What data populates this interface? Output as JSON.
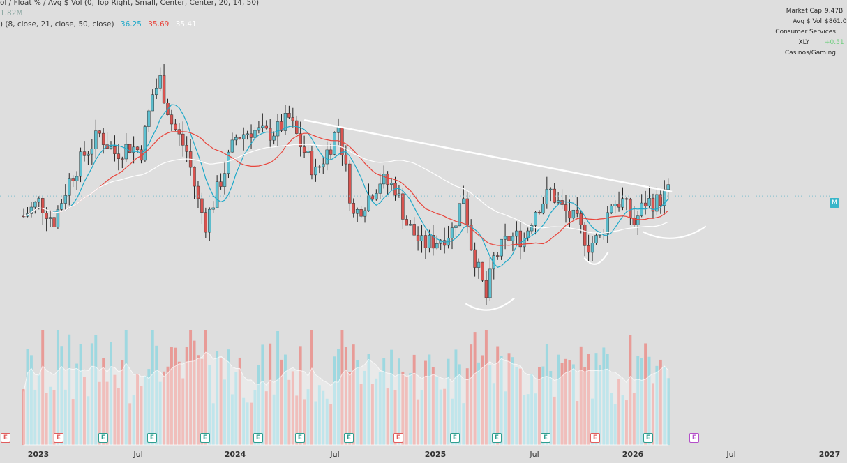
{
  "legend": {
    "title": "ol / Float % / Avg $ Vol (0, Top Right, Small, Center, Center, 20, 14, 50)",
    "vol_value": "1.82M",
    "ma_params": ") (8, close, 21, close, 50, close)",
    "ma8": "36.25",
    "ma21": "35.69",
    "ma50": "35.41",
    "colors": {
      "ma8": "#1fa9c9",
      "ma21": "#e8453c",
      "ma50": "#ffffff"
    }
  },
  "info_panel": [
    {
      "label": "Market Cap",
      "value": "9.47B"
    },
    {
      "label": "Avg $ Vol",
      "value": "$861.0"
    },
    {
      "label": "Consumer Services",
      "value": ""
    },
    {
      "label": "XLY",
      "value": "+0.51"
    },
    {
      "label": "Casinos/Gaming",
      "value": ""
    }
  ],
  "price_tag": "M",
  "x_axis": [
    "2023",
    "Jul",
    "2024",
    "Jul",
    "2025",
    "Jul",
    "2026",
    "Jul",
    "2027"
  ],
  "earnings_badges": [
    {
      "label": "E",
      "color": "#e05d5d"
    },
    {
      "label": "E",
      "color": "#e05d5d"
    },
    {
      "label": "E",
      "color": "#2e9e8f"
    },
    {
      "label": "E",
      "color": "#2e9e8f"
    },
    {
      "label": "E",
      "color": "#2e9e8f"
    },
    {
      "label": "E",
      "color": "#2e9e8f"
    },
    {
      "label": "E",
      "color": "#2e9e8f"
    },
    {
      "label": "E",
      "color": "#2e9e8f"
    },
    {
      "label": "E",
      "color": "#e05d5d"
    },
    {
      "label": "E",
      "color": "#2e9e8f"
    },
    {
      "label": "E",
      "color": "#2e9e8f"
    },
    {
      "label": "E",
      "color": "#2e9e8f"
    },
    {
      "label": "E",
      "color": "#e05d5d"
    },
    {
      "label": "E",
      "color": "#2e9e8f"
    },
    {
      "label": "E",
      "color": "#b44fc9"
    }
  ],
  "chart_data": {
    "type": "candlestick",
    "interval": "weekly",
    "x_range": [
      "2022-12",
      "2027-01"
    ],
    "colors": {
      "up": "#5dbfcf",
      "down": "#d9534f",
      "volume_up": "#9ed8e0",
      "volume_down": "#e89b97",
      "trendline": "#ffffff",
      "last_price_line": "#7fbfcf"
    },
    "price_path": [
      [
        "2022-12-05",
        34.5
      ],
      [
        "2023-01-02",
        35.5
      ],
      [
        "2023-01-30",
        34.2
      ],
      [
        "2023-02-27",
        37.0
      ],
      [
        "2023-03-27",
        38.8
      ],
      [
        "2023-04-24",
        40.2
      ],
      [
        "2023-05-22",
        38.9
      ],
      [
        "2023-06-19",
        39.4
      ],
      [
        "2023-07-10",
        39.0
      ],
      [
        "2023-07-31",
        43.0
      ],
      [
        "2023-08-14",
        44.0
      ],
      [
        "2023-09-04",
        41.0
      ],
      [
        "2023-10-02",
        39.0
      ],
      [
        "2023-10-23",
        35.5
      ],
      [
        "2023-11-06",
        34.0
      ],
      [
        "2023-12-04",
        37.0
      ],
      [
        "2024-01-01",
        40.0
      ],
      [
        "2024-01-29",
        40.5
      ],
      [
        "2024-02-26",
        40.2
      ],
      [
        "2024-03-18",
        40.5
      ],
      [
        "2024-04-08",
        41.3
      ],
      [
        "2024-04-29",
        39.5
      ],
      [
        "2024-05-27",
        37.5
      ],
      [
        "2024-06-24",
        39.5
      ],
      [
        "2024-07-08",
        40.8
      ],
      [
        "2024-08-05",
        34.5
      ],
      [
        "2024-08-26",
        35.5
      ],
      [
        "2024-09-23",
        37.0
      ],
      [
        "2024-10-21",
        36.5
      ],
      [
        "2024-11-11",
        34.0
      ],
      [
        "2024-12-09",
        32.5
      ],
      [
        "2025-01-06",
        32.8
      ],
      [
        "2025-02-03",
        33.5
      ],
      [
        "2025-02-24",
        36.0
      ],
      [
        "2025-03-10",
        32.5
      ],
      [
        "2025-04-07",
        28.8
      ],
      [
        "2025-04-21",
        31.5
      ],
      [
        "2025-05-19",
        33.0
      ],
      [
        "2025-06-16",
        33.0
      ],
      [
        "2025-07-07",
        35.0
      ],
      [
        "2025-08-04",
        36.2
      ],
      [
        "2025-08-25",
        35.0
      ],
      [
        "2025-09-22",
        34.0
      ],
      [
        "2025-10-13",
        32.5
      ],
      [
        "2025-11-03",
        33.0
      ],
      [
        "2025-11-24",
        35.5
      ],
      [
        "2025-12-15",
        35.5
      ],
      [
        "2026-01-05",
        34.0
      ],
      [
        "2026-01-26",
        35.5
      ],
      [
        "2026-02-16",
        35.5
      ],
      [
        "2026-03-09",
        36.2
      ]
    ],
    "ma_latest": {
      "ma8": 36.25,
      "ma21": 35.69,
      "ma50": 35.41
    },
    "volume_recent_value": "1.82M"
  }
}
